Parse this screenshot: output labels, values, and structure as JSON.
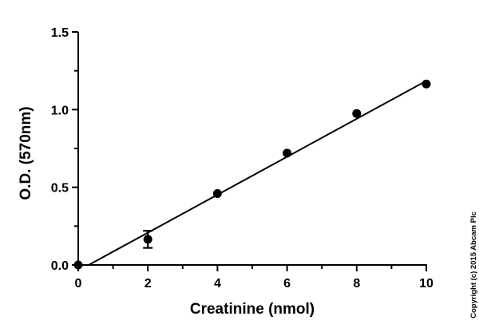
{
  "chart_data": {
    "type": "scatter",
    "title": "",
    "xlabel": "Creatinine (nmol)",
    "ylabel": "O.D. (570nm)",
    "xlim": [
      0,
      10
    ],
    "ylim": [
      0,
      1.5
    ],
    "x_ticks": [
      0,
      2,
      4,
      6,
      8,
      10
    ],
    "x_tick_labels": [
      "0",
      "2",
      "4",
      "6",
      "8",
      "10"
    ],
    "y_ticks": [
      0,
      0.5,
      1.0,
      1.5
    ],
    "y_tick_labels": [
      "0.0",
      "0.5",
      "1.0",
      "1.5"
    ],
    "grid": false,
    "legend": "none",
    "series": [
      {
        "x": [
          0,
          2,
          4,
          6,
          8,
          10
        ],
        "y": [
          0.0,
          0.165,
          0.46,
          0.72,
          0.975,
          1.165
        ],
        "error": [
          0,
          0.055,
          0,
          0,
          0,
          0
        ]
      }
    ],
    "fit_line": {
      "x": [
        0.3,
        10
      ],
      "y": [
        0.0,
        1.185
      ]
    },
    "marker_color": "#000000",
    "line_color": "#000000"
  },
  "copyright": "Copyright (c) 2015 Abcam Plc"
}
